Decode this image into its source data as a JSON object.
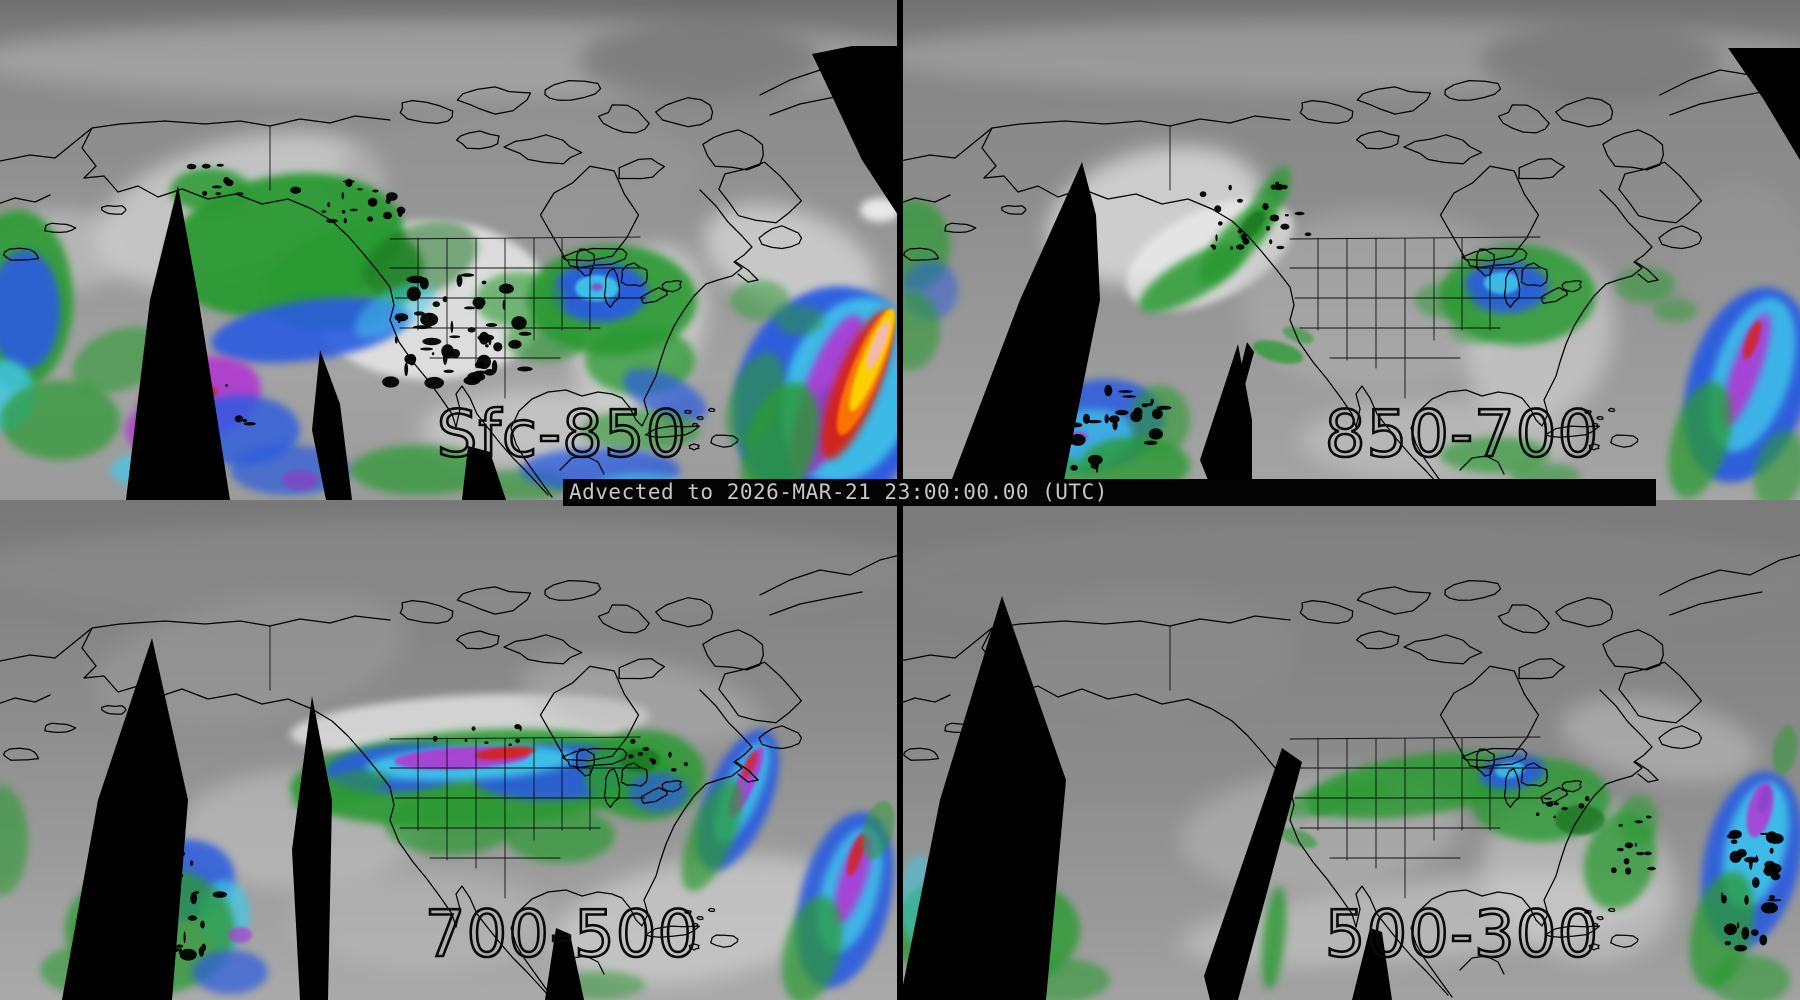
{
  "status_bar": {
    "text": "Advected to 2026-MAR-21 23:00:00.00 (UTC)"
  },
  "panels": [
    {
      "label": "Sfc-850"
    },
    {
      "label": "850-700"
    },
    {
      "label": "700-500"
    },
    {
      "label": "500-300"
    }
  ],
  "palette": {
    "background_gray": "#8a8a8a",
    "cloud_white": "#e6e6e6",
    "moist_green": "#2a9a33",
    "moist_green_dark": "#15701d",
    "moist_blue": "#2b5ce0",
    "moist_cyan": "#3fc9eb",
    "moist_magenta": "#b137d2",
    "moist_purple": "#8a3fc4",
    "moist_red": "#d62317",
    "moist_orange": "#ff7d00",
    "moist_yellow": "#ffd900",
    "moist_pink": "#f2b6c3",
    "no_data_black": "#000000",
    "coastline_black": "#000000",
    "label_ink": "#0a0a0a",
    "status_text_gray": "#c6c6c6",
    "status_bar_black": "#040404"
  }
}
